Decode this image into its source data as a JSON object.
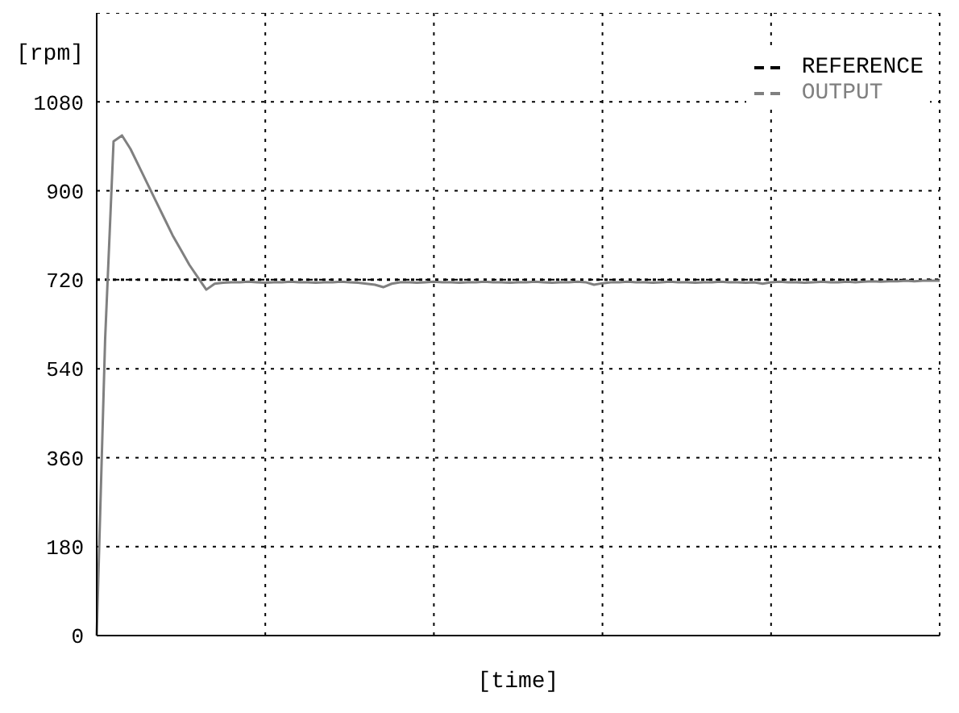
{
  "chart_data": {
    "type": "line",
    "xlabel": "[time]",
    "ylabel": "[rpm]",
    "categories": [
      null,
      null,
      null,
      null,
      null,
      null,
      null,
      null,
      null,
      null,
      null,
      null,
      null,
      null,
      null,
      null,
      null,
      null,
      null,
      null,
      null,
      null,
      null,
      null,
      null,
      null,
      null,
      null,
      null,
      null,
      null,
      null,
      null,
      null,
      null,
      null,
      null,
      null,
      null,
      null,
      null,
      null,
      null,
      null,
      null,
      null,
      null,
      null,
      null,
      null,
      null,
      null,
      null,
      null,
      null,
      null,
      null,
      null,
      null,
      null,
      null,
      null,
      null,
      null,
      null,
      null,
      null,
      null,
      null,
      null,
      null,
      null,
      null,
      null,
      null,
      null,
      null,
      null,
      null,
      null,
      null,
      null,
      null,
      null,
      null,
      null,
      null,
      null,
      null,
      null,
      null,
      null,
      null,
      null,
      null,
      null,
      null,
      null,
      null,
      null,
      null
    ],
    "ylim": [
      0,
      1260
    ],
    "yticks": [
      0,
      180,
      360,
      540,
      720,
      900,
      1080
    ],
    "grid": true,
    "legend": "top right",
    "marker": "none",
    "series": [
      {
        "name": "REFERENCE",
        "color": "#000000",
        "line_style": "dotted",
        "values": [
          720,
          720,
          720,
          720,
          720,
          720,
          720,
          720,
          720,
          720,
          720,
          720,
          720,
          720,
          720,
          720,
          720,
          720,
          720,
          720,
          720,
          720,
          720,
          720,
          720,
          720,
          720,
          720,
          720,
          720,
          720,
          720,
          720,
          720,
          720,
          720,
          720,
          720,
          720,
          720,
          720,
          720,
          720,
          720,
          720,
          720,
          720,
          720,
          720,
          720,
          720,
          720,
          720,
          720,
          720,
          720,
          720,
          720,
          720,
          720,
          720,
          720,
          720,
          720,
          720,
          720,
          720,
          720,
          720,
          720,
          720,
          720,
          720,
          720,
          720,
          720,
          720,
          720,
          720,
          720,
          720,
          720,
          720,
          720,
          720,
          720,
          720,
          720,
          720,
          720,
          720,
          720,
          720,
          720,
          720,
          720,
          720,
          720,
          720,
          720,
          720
        ]
      },
      {
        "name": "OUTPUT",
        "color": "#808080",
        "line_style": "solid",
        "values": [
          0,
          600,
          1000,
          1012,
          985,
          950,
          915,
          880,
          845,
          810,
          780,
          750,
          725,
          700,
          712,
          714,
          715,
          715,
          716,
          715,
          714,
          715,
          715,
          716,
          715,
          715,
          714,
          715,
          715,
          716,
          715,
          714,
          712,
          710,
          705,
          712,
          715,
          715,
          714,
          715,
          716,
          715,
          715,
          714,
          715,
          715,
          716,
          715,
          715,
          714,
          715,
          715,
          716,
          715,
          714,
          715,
          715,
          716,
          715,
          710,
          713,
          715,
          715,
          716,
          715,
          715,
          714,
          715,
          716,
          715,
          715,
          714,
          715,
          715,
          716,
          715,
          715,
          714,
          715,
          712,
          715,
          716,
          715,
          715,
          714,
          715,
          716,
          715,
          715,
          716,
          715,
          716,
          717,
          716,
          717,
          717,
          718,
          717,
          718,
          718,
          718
        ]
      }
    ]
  }
}
